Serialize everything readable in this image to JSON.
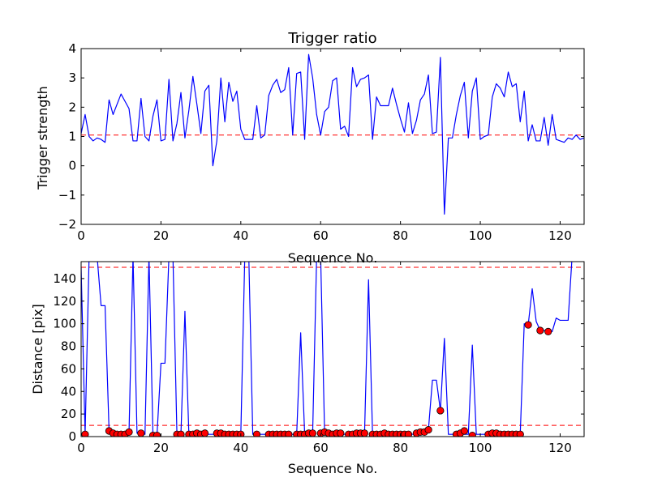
{
  "chart_data": [
    {
      "type": "line",
      "title": "Trigger ratio",
      "xlabel": "Sequence No.",
      "ylabel": "Trigger strength",
      "xlim": [
        0,
        126
      ],
      "ylim": [
        -2,
        4
      ],
      "xticks": [
        0,
        20,
        40,
        60,
        80,
        100,
        120
      ],
      "yticks": [
        -2,
        -1,
        0,
        1,
        2,
        3,
        4
      ],
      "ytick_labels": [
        "−2",
        "−1",
        "0",
        "1",
        "2",
        "3",
        "4"
      ],
      "grid": false,
      "threshold_lines": [
        {
          "y": 1.05,
          "color": "#ff0000",
          "style": "dashed"
        }
      ],
      "series": [
        {
          "color": "#0000ff",
          "values": [
            1.1,
            1.75,
            1.0,
            0.85,
            0.95,
            0.9,
            0.8,
            2.25,
            1.75,
            2.1,
            2.45,
            2.2,
            1.95,
            0.85,
            0.85,
            2.3,
            1.0,
            0.85,
            1.7,
            2.25,
            0.85,
            0.9,
            2.95,
            0.85,
            1.45,
            2.5,
            0.95,
            1.9,
            3.05,
            2.1,
            1.1,
            2.55,
            2.75,
            0.0,
            0.85,
            3.0,
            1.5,
            2.85,
            2.2,
            2.55,
            1.25,
            0.9,
            0.9,
            0.9,
            2.05,
            0.95,
            1.05,
            2.4,
            2.75,
            2.95,
            2.5,
            2.6,
            3.35,
            1.05,
            3.15,
            3.2,
            0.9,
            3.8,
            3.0,
            1.75,
            1.05,
            1.85,
            2.0,
            2.9,
            3.0,
            1.25,
            1.35,
            1.0,
            3.35,
            2.7,
            2.95,
            3.0,
            3.1,
            0.9,
            2.35,
            2.05,
            2.05,
            2.05,
            2.65,
            2.1,
            1.6,
            1.15,
            2.15,
            1.1,
            1.55,
            2.25,
            2.45,
            3.1,
            1.1,
            1.15,
            3.7,
            -1.65,
            0.95,
            0.95,
            1.75,
            2.4,
            2.85,
            0.95,
            2.55,
            3.0,
            0.9,
            1.0,
            1.05,
            2.35,
            2.8,
            2.65,
            2.35,
            3.2,
            2.7,
            2.8,
            1.5,
            2.55,
            0.85,
            1.4,
            0.85,
            0.85,
            1.65,
            0.7,
            1.75,
            0.9,
            0.85,
            0.8,
            0.95,
            0.9,
            1.05,
            0.9,
            0.95,
            0.35
          ]
        }
      ]
    },
    {
      "type": "line",
      "title": "",
      "xlabel": "Sequence No.",
      "ylabel": "Distance [pix]",
      "xlim": [
        0,
        126
      ],
      "ylim": [
        0,
        155
      ],
      "xticks": [
        0,
        20,
        40,
        60,
        80,
        100,
        120
      ],
      "yticks": [
        0,
        20,
        40,
        60,
        80,
        100,
        120,
        140
      ],
      "grid": false,
      "threshold_lines": [
        {
          "y": 150,
          "color": "#ff0000",
          "style": "dashed"
        },
        {
          "y": 10,
          "color": "#ff0000",
          "style": "dashed"
        }
      ],
      "series": [
        {
          "color": "#0000ff",
          "points": [
            [
              0,
              150
            ],
            [
              1,
              2
            ],
            [
              2,
              160
            ],
            [
              3,
              160
            ],
            [
              4,
              160
            ],
            [
              5,
              116
            ],
            [
              6,
              116
            ],
            [
              7,
              5
            ],
            [
              8,
              2
            ],
            [
              9,
              2
            ],
            [
              10,
              2
            ],
            [
              11,
              2
            ],
            [
              12,
              4
            ],
            [
              13,
              160
            ],
            [
              14,
              3
            ],
            [
              15,
              3
            ],
            [
              16,
              2
            ],
            [
              17,
              160
            ],
            [
              18,
              1
            ],
            [
              19,
              1
            ],
            [
              20,
              65
            ],
            [
              21,
              65
            ],
            [
              22,
              160
            ],
            [
              23,
              160
            ],
            [
              24,
              2
            ],
            [
              25,
              2
            ],
            [
              26,
              111
            ],
            [
              27,
              1
            ],
            [
              28,
              2
            ],
            [
              29,
              1
            ],
            [
              30,
              2
            ],
            [
              31,
              3
            ],
            [
              32,
              2
            ],
            [
              33,
              2
            ],
            [
              34,
              3
            ],
            [
              35,
              3
            ],
            [
              36,
              2
            ],
            [
              37,
              2
            ],
            [
              38,
              2
            ],
            [
              39,
              2
            ],
            [
              40,
              2
            ],
            [
              41,
              160
            ],
            [
              42,
              160
            ],
            [
              43,
              2
            ],
            [
              44,
              2
            ],
            [
              45,
              2
            ],
            [
              46,
              2
            ],
            [
              47,
              2
            ],
            [
              48,
              2
            ],
            [
              49,
              2
            ],
            [
              50,
              2
            ],
            [
              51,
              2
            ],
            [
              52,
              2
            ],
            [
              53,
              2
            ],
            [
              54,
              2
            ],
            [
              55,
              92
            ],
            [
              56,
              2
            ],
            [
              57,
              3
            ],
            [
              58,
              3
            ],
            [
              59,
              160
            ],
            [
              60,
              160
            ],
            [
              61,
              2
            ],
            [
              62,
              2
            ],
            [
              63,
              2
            ],
            [
              64,
              2
            ],
            [
              65,
              2
            ],
            [
              66,
              2
            ],
            [
              67,
              2
            ],
            [
              68,
              2
            ],
            [
              69,
              2
            ],
            [
              70,
              2
            ],
            [
              71,
              3
            ],
            [
              72,
              139
            ],
            [
              73,
              2
            ],
            [
              74,
              2
            ],
            [
              75,
              2
            ],
            [
              76,
              2
            ],
            [
              77,
              2
            ],
            [
              78,
              2
            ],
            [
              79,
              2
            ],
            [
              80,
              2
            ],
            [
              81,
              2
            ],
            [
              82,
              2
            ],
            [
              83,
              2
            ],
            [
              84,
              3
            ],
            [
              85,
              4
            ],
            [
              86,
              4
            ],
            [
              87,
              6
            ],
            [
              88,
              50
            ],
            [
              89,
              50
            ],
            [
              90,
              23
            ],
            [
              91,
              87
            ],
            [
              92,
              2
            ],
            [
              93,
              2
            ],
            [
              94,
              3
            ],
            [
              95,
              5
            ],
            [
              96,
              2
            ],
            [
              97,
              2
            ],
            [
              98,
              81
            ],
            [
              99,
              2
            ],
            [
              100,
              2
            ],
            [
              101,
              2
            ],
            [
              102,
              2
            ],
            [
              103,
              2
            ],
            [
              104,
              2
            ],
            [
              105,
              2
            ],
            [
              106,
              2
            ],
            [
              107,
              2
            ],
            [
              108,
              2
            ],
            [
              109,
              2
            ],
            [
              110,
              2
            ],
            [
              111,
              100
            ],
            [
              112,
              99
            ],
            [
              113,
              131
            ],
            [
              114,
              102
            ],
            [
              115,
              94
            ],
            [
              116,
              94
            ],
            [
              117,
              93
            ],
            [
              118,
              93
            ],
            [
              119,
              105
            ],
            [
              120,
              103
            ],
            [
              121,
              103
            ],
            [
              122,
              103
            ],
            [
              123,
              160
            ],
            [
              124,
              160
            ],
            [
              125,
              160
            ]
          ]
        }
      ],
      "markers": {
        "color": "#ff0000",
        "edge_color": "#000000",
        "points": [
          [
            1,
            2
          ],
          [
            7,
            5
          ],
          [
            8,
            3
          ],
          [
            9,
            2
          ],
          [
            10,
            2
          ],
          [
            11,
            2
          ],
          [
            12,
            4
          ],
          [
            15,
            3
          ],
          [
            18,
            1
          ],
          [
            19,
            1
          ],
          [
            24,
            2
          ],
          [
            25,
            2
          ],
          [
            27,
            2
          ],
          [
            28,
            2
          ],
          [
            29,
            3
          ],
          [
            30,
            2
          ],
          [
            31,
            3
          ],
          [
            34,
            3
          ],
          [
            35,
            3
          ],
          [
            36,
            2
          ],
          [
            37,
            2
          ],
          [
            38,
            2
          ],
          [
            39,
            2
          ],
          [
            40,
            2
          ],
          [
            44,
            2
          ],
          [
            47,
            2
          ],
          [
            48,
            2
          ],
          [
            49,
            2
          ],
          [
            50,
            2
          ],
          [
            51,
            2
          ],
          [
            52,
            2
          ],
          [
            54,
            2
          ],
          [
            55,
            2
          ],
          [
            56,
            2
          ],
          [
            57,
            3
          ],
          [
            58,
            3
          ],
          [
            60,
            3
          ],
          [
            61,
            4
          ],
          [
            62,
            3
          ],
          [
            63,
            2
          ],
          [
            64,
            3
          ],
          [
            65,
            3
          ],
          [
            67,
            2
          ],
          [
            68,
            2
          ],
          [
            69,
            3
          ],
          [
            70,
            3
          ],
          [
            71,
            3
          ],
          [
            73,
            2
          ],
          [
            74,
            2
          ],
          [
            75,
            2
          ],
          [
            76,
            3
          ],
          [
            77,
            2
          ],
          [
            78,
            2
          ],
          [
            79,
            2
          ],
          [
            80,
            2
          ],
          [
            81,
            2
          ],
          [
            82,
            2
          ],
          [
            84,
            3
          ],
          [
            85,
            4
          ],
          [
            86,
            4
          ],
          [
            87,
            6
          ],
          [
            90,
            23
          ],
          [
            94,
            2
          ],
          [
            95,
            3
          ],
          [
            96,
            5
          ],
          [
            98,
            1
          ],
          [
            102,
            2
          ],
          [
            103,
            3
          ],
          [
            104,
            3
          ],
          [
            105,
            2
          ],
          [
            106,
            2
          ],
          [
            107,
            2
          ],
          [
            108,
            2
          ],
          [
            109,
            2
          ],
          [
            110,
            2
          ],
          [
            112,
            99
          ],
          [
            115,
            94
          ],
          [
            117,
            93
          ]
        ]
      }
    }
  ]
}
